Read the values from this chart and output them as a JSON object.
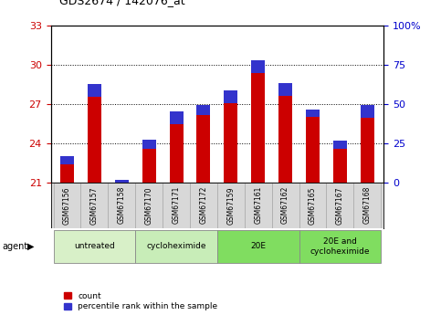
{
  "title": "GDS2674 / 142076_at",
  "samples": [
    "GSM67156",
    "GSM67157",
    "GSM67158",
    "GSM67170",
    "GSM67171",
    "GSM67172",
    "GSM67159",
    "GSM67161",
    "GSM67162",
    "GSM67165",
    "GSM67167",
    "GSM67168"
  ],
  "count_values": [
    23.0,
    28.5,
    21.2,
    24.3,
    26.4,
    26.9,
    28.0,
    30.3,
    28.6,
    26.6,
    24.2,
    26.9
  ],
  "percentile_values": [
    5.0,
    8.0,
    10.0,
    6.0,
    8.0,
    6.0,
    8.0,
    8.0,
    8.0,
    5.0,
    5.0,
    8.0
  ],
  "ylim_left": [
    21,
    33
  ],
  "ylim_right": [
    0,
    100
  ],
  "yticks_left": [
    21,
    24,
    27,
    30,
    33
  ],
  "yticks_right": [
    0,
    25,
    50,
    75,
    100
  ],
  "group_boundaries": [
    [
      0,
      2,
      "untreated",
      "#d8f0c8"
    ],
    [
      3,
      5,
      "cycloheximide",
      "#c8edb8"
    ],
    [
      6,
      8,
      "20E",
      "#80dd60"
    ],
    [
      9,
      11,
      "20E and\ncycloheximide",
      "#80dd60"
    ]
  ],
  "bar_width": 0.5,
  "count_color": "#cc0000",
  "percentile_color": "#3333cc",
  "grid_color": "#000000",
  "bg_color": "#ffffff",
  "plot_bg_color": "#ffffff",
  "tick_label_color_left": "#cc0000",
  "tick_label_color_right": "#0000cc",
  "agent_label": "agent",
  "legend_count": "count",
  "legend_percentile": "percentile rank within the sample",
  "base_value": 21,
  "sample_box_color": "#d8d8d8"
}
